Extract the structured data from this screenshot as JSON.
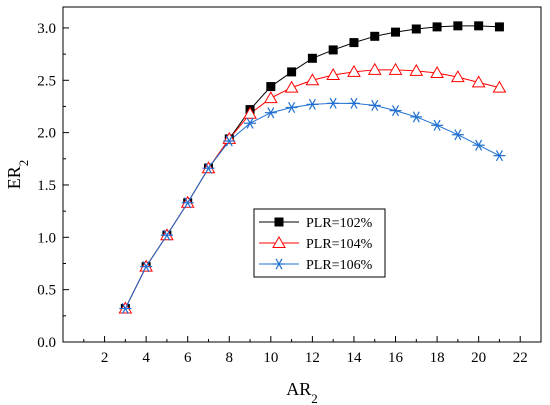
{
  "chart_data": {
    "type": "line",
    "xlabel": "AR",
    "xlabel_sub": "2",
    "ylabel": "ER",
    "ylabel_sub": "2",
    "xlim": [
      0,
      23
    ],
    "ylim": [
      0.0,
      3.2
    ],
    "xticks": [
      2,
      4,
      6,
      8,
      10,
      12,
      14,
      16,
      18,
      20,
      22
    ],
    "yticks": [
      0.0,
      0.5,
      1.0,
      1.5,
      2.0,
      2.5,
      3.0
    ],
    "ytick_labels": [
      "0.0",
      "0.5",
      "1.0",
      "1.5",
      "2.0",
      "2.5",
      "3.0"
    ],
    "grid": false,
    "legend_position": "center",
    "x": [
      3,
      4,
      5,
      6,
      7,
      8,
      9,
      10,
      11,
      12,
      13,
      14,
      15,
      16,
      17,
      18,
      19,
      20,
      21
    ],
    "series": [
      {
        "name": "PLR=102%",
        "color": "#000000",
        "marker": "filled-square",
        "values": [
          0.32,
          0.72,
          1.02,
          1.33,
          1.66,
          1.94,
          2.22,
          2.44,
          2.58,
          2.71,
          2.79,
          2.86,
          2.92,
          2.96,
          2.99,
          3.01,
          3.02,
          3.02,
          3.01
        ]
      },
      {
        "name": "PLR=104%",
        "color": "#ff0000",
        "marker": "open-triangle",
        "values": [
          0.32,
          0.72,
          1.02,
          1.33,
          1.66,
          1.94,
          2.18,
          2.33,
          2.43,
          2.5,
          2.55,
          2.58,
          2.6,
          2.6,
          2.59,
          2.57,
          2.53,
          2.48,
          2.43
        ]
      },
      {
        "name": "PLR=106%",
        "color": "#1f6fd1",
        "marker": "asterisk",
        "values": [
          0.32,
          0.72,
          1.02,
          1.33,
          1.66,
          1.92,
          2.09,
          2.19,
          2.24,
          2.27,
          2.28,
          2.28,
          2.26,
          2.21,
          2.15,
          2.07,
          1.98,
          1.88,
          1.78
        ]
      }
    ]
  }
}
